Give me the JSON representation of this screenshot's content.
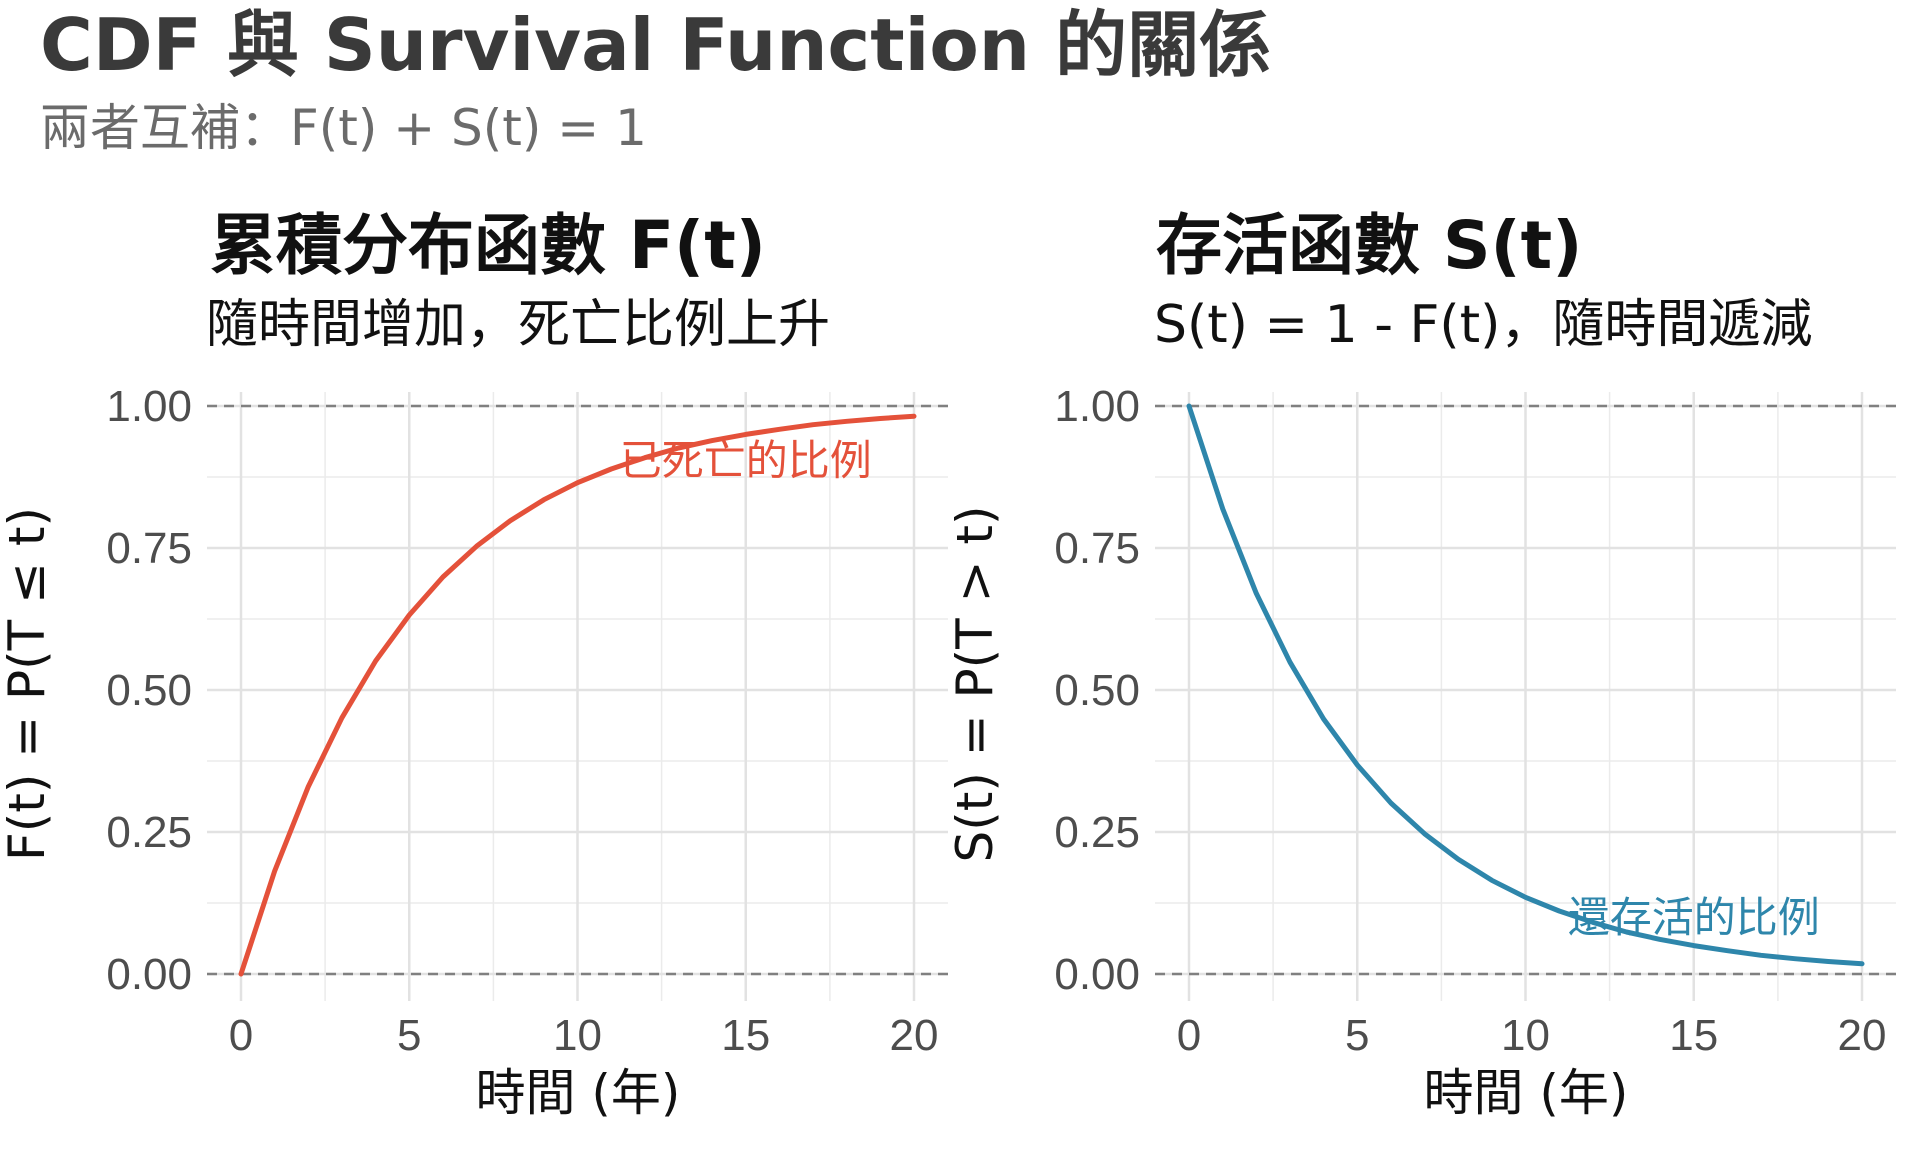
{
  "main": {
    "title": "CDF 與 Survival Function 的關係",
    "subtitle": "兩者互補：F(t) + S(t) = 1"
  },
  "chart_data": [
    {
      "type": "line",
      "title": "累積分布函數 F(t)",
      "subtitle": "隨時間增加，死亡比例上升",
      "xlabel": "時間 (年)",
      "ylabel": "F(t) = P(T ≤ t)",
      "xlim": [
        0,
        20
      ],
      "ylim": [
        0,
        1
      ],
      "xticks": [
        "0",
        "5",
        "10",
        "15",
        "20"
      ],
      "yticks": [
        "0.00",
        "0.25",
        "0.50",
        "0.75",
        "1.00"
      ],
      "x": [
        0,
        1,
        2,
        3,
        4,
        5,
        6,
        7,
        8,
        9,
        10,
        11,
        12,
        13,
        14,
        15,
        16,
        17,
        18,
        19,
        20
      ],
      "series": [
        {
          "values": [
            0,
            0.181,
            0.33,
            0.451,
            0.551,
            0.632,
            0.699,
            0.753,
            0.798,
            0.835,
            0.865,
            0.889,
            0.909,
            0.926,
            0.939,
            0.95,
            0.959,
            0.967,
            0.973,
            0.978,
            0.982
          ],
          "color": "#e4513a"
        }
      ],
      "reference_lines_y": [
        0,
        1
      ],
      "annotation": {
        "text": "已死亡的比例",
        "x": 15,
        "y": 0.905,
        "color": "#e4513a"
      },
      "grid": true
    },
    {
      "type": "line",
      "title": "存活函數 S(t)",
      "subtitle": "S(t) = 1 - F(t)，隨時間遞減",
      "xlabel": "時間 (年)",
      "ylabel": "S(t) = P(T > t)",
      "xlim": [
        0,
        20
      ],
      "ylim": [
        0,
        1
      ],
      "xticks": [
        "0",
        "5",
        "10",
        "15",
        "20"
      ],
      "yticks": [
        "0.00",
        "0.25",
        "0.50",
        "0.75",
        "1.00"
      ],
      "x": [
        0,
        1,
        2,
        3,
        4,
        5,
        6,
        7,
        8,
        9,
        10,
        11,
        12,
        13,
        14,
        15,
        16,
        17,
        18,
        19,
        20
      ],
      "series": [
        {
          "values": [
            1,
            0.819,
            0.67,
            0.549,
            0.449,
            0.368,
            0.301,
            0.247,
            0.202,
            0.165,
            0.135,
            0.111,
            0.091,
            0.074,
            0.061,
            0.05,
            0.041,
            0.033,
            0.027,
            0.022,
            0.018
          ],
          "color": "#2e86ab"
        }
      ],
      "reference_lines_y": [
        0,
        1
      ],
      "annotation": {
        "text": "還存活的比例",
        "x": 15,
        "y": 0.1,
        "color": "#2e86ab"
      },
      "grid": true
    }
  ]
}
